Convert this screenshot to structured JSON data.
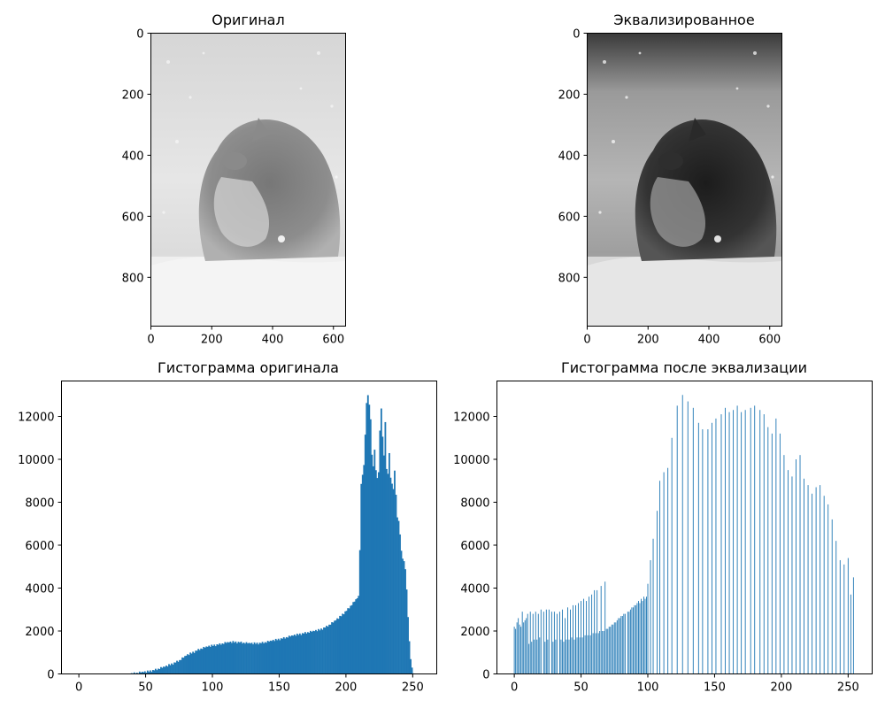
{
  "colors": {
    "bar": "#1f77b4",
    "axis": "#000000",
    "background": "#ffffff"
  },
  "images": [
    {
      "title": "Оригинал",
      "style": "original",
      "xlim": [
        0,
        640
      ],
      "ylim": [
        0,
        960
      ],
      "xticks": [
        0,
        200,
        400,
        600
      ],
      "yticks": [
        0,
        200,
        400,
        600,
        800
      ]
    },
    {
      "title": "Эквализированное",
      "style": "equalized",
      "xlim": [
        0,
        640
      ],
      "ylim": [
        0,
        960
      ],
      "xticks": [
        0,
        200,
        400,
        600
      ],
      "yticks": [
        0,
        200,
        400,
        600,
        800
      ]
    }
  ],
  "chart_data": [
    {
      "type": "bar",
      "title": "Гистограмма оригинала",
      "xlim": [
        -13,
        268
      ],
      "ylim": [
        0,
        13650
      ],
      "xticks": [
        0,
        50,
        100,
        150,
        200,
        250
      ],
      "yticks": [
        0,
        2000,
        4000,
        6000,
        8000,
        10000,
        12000
      ],
      "bins": 256,
      "anchors": [
        [
          0,
          0
        ],
        [
          37,
          0
        ],
        [
          40,
          20
        ],
        [
          45,
          60
        ],
        [
          50,
          90
        ],
        [
          55,
          160
        ],
        [
          60,
          250
        ],
        [
          65,
          350
        ],
        [
          70,
          480
        ],
        [
          75,
          630
        ],
        [
          80,
          850
        ],
        [
          85,
          1000
        ],
        [
          90,
          1150
        ],
        [
          95,
          1250
        ],
        [
          100,
          1320
        ],
        [
          105,
          1380
        ],
        [
          110,
          1450
        ],
        [
          115,
          1480
        ],
        [
          120,
          1470
        ],
        [
          125,
          1430
        ],
        [
          130,
          1410
        ],
        [
          135,
          1430
        ],
        [
          140,
          1480
        ],
        [
          145,
          1550
        ],
        [
          150,
          1620
        ],
        [
          155,
          1700
        ],
        [
          160,
          1780
        ],
        [
          165,
          1850
        ],
        [
          170,
          1920
        ],
        [
          175,
          1980
        ],
        [
          180,
          2050
        ],
        [
          185,
          2200
        ],
        [
          190,
          2400
        ],
        [
          195,
          2650
        ],
        [
          200,
          2950
        ],
        [
          205,
          3300
        ],
        [
          209,
          3600
        ],
        [
          210,
          5800
        ],
        [
          211,
          8800
        ],
        [
          212,
          9300
        ],
        [
          213,
          9700
        ],
        [
          214,
          11200
        ],
        [
          215,
          12600
        ],
        [
          216,
          13000
        ],
        [
          217,
          12500
        ],
        [
          218,
          11900
        ],
        [
          219,
          10200
        ],
        [
          220,
          9700
        ],
        [
          221,
          10400
        ],
        [
          222,
          9500
        ],
        [
          223,
          9100
        ],
        [
          224,
          9400
        ],
        [
          225,
          11300
        ],
        [
          226,
          12400
        ],
        [
          227,
          11000
        ],
        [
          228,
          10200
        ],
        [
          229,
          11700
        ],
        [
          230,
          9600
        ],
        [
          231,
          9300
        ],
        [
          232,
          10300
        ],
        [
          233,
          9100
        ],
        [
          234,
          8900
        ],
        [
          235,
          8600
        ],
        [
          236,
          9500
        ],
        [
          237,
          8300
        ],
        [
          238,
          7300
        ],
        [
          239,
          7100
        ],
        [
          240,
          6500
        ],
        [
          241,
          5700
        ],
        [
          242,
          5400
        ],
        [
          243,
          5200
        ],
        [
          244,
          4900
        ],
        [
          245,
          3900
        ],
        [
          246,
          2700
        ],
        [
          247,
          1500
        ],
        [
          248,
          700
        ],
        [
          249,
          250
        ],
        [
          250,
          60
        ],
        [
          251,
          0
        ],
        [
          255,
          0
        ]
      ],
      "wiggle": [
        0,
        40,
        -30,
        55,
        -20,
        35,
        -50,
        25,
        -10,
        45,
        -35,
        15,
        -25,
        50,
        -5,
        30
      ]
    },
    {
      "type": "bar",
      "title": "Гистограмма после эквализации",
      "xlim": [
        -13,
        268
      ],
      "ylim": [
        0,
        13650
      ],
      "xticks": [
        0,
        50,
        100,
        150,
        200,
        250
      ],
      "yticks": [
        0,
        2000,
        4000,
        6000,
        8000,
        10000,
        12000
      ],
      "bins": 256,
      "values_sparse": [
        [
          0,
          2200
        ],
        [
          1,
          2100
        ],
        [
          2,
          2400
        ],
        [
          3,
          2600
        ],
        [
          4,
          2300
        ],
        [
          5,
          2200
        ],
        [
          6,
          2900
        ],
        [
          7,
          2400
        ],
        [
          8,
          2500
        ],
        [
          9,
          2600
        ],
        [
          10,
          2800
        ],
        [
          11,
          1400
        ],
        [
          12,
          2900
        ],
        [
          13,
          1500
        ],
        [
          14,
          2800
        ],
        [
          15,
          1600
        ],
        [
          16,
          2900
        ],
        [
          17,
          1600
        ],
        [
          18,
          2800
        ],
        [
          19,
          1700
        ],
        [
          20,
          3000
        ],
        [
          22,
          2900
        ],
        [
          23,
          1500
        ],
        [
          24,
          3000
        ],
        [
          25,
          1600
        ],
        [
          26,
          3000
        ],
        [
          28,
          2900
        ],
        [
          29,
          1500
        ],
        [
          30,
          2900
        ],
        [
          31,
          1600
        ],
        [
          32,
          2800
        ],
        [
          34,
          2900
        ],
        [
          35,
          1600
        ],
        [
          36,
          3000
        ],
        [
          37,
          1500
        ],
        [
          38,
          2600
        ],
        [
          39,
          1600
        ],
        [
          40,
          3100
        ],
        [
          41,
          1600
        ],
        [
          42,
          3000
        ],
        [
          43,
          1700
        ],
        [
          44,
          3200
        ],
        [
          45,
          1600
        ],
        [
          46,
          3200
        ],
        [
          47,
          1700
        ],
        [
          48,
          3300
        ],
        [
          49,
          1700
        ],
        [
          50,
          3400
        ],
        [
          51,
          1700
        ],
        [
          52,
          3500
        ],
        [
          53,
          1800
        ],
        [
          54,
          3400
        ],
        [
          55,
          1800
        ],
        [
          56,
          3600
        ],
        [
          57,
          1800
        ],
        [
          58,
          3700
        ],
        [
          59,
          1900
        ],
        [
          60,
          3900
        ],
        [
          61,
          1900
        ],
        [
          62,
          3900
        ],
        [
          63,
          1900
        ],
        [
          64,
          2000
        ],
        [
          65,
          4100
        ],
        [
          66,
          2000
        ],
        [
          67,
          2000
        ],
        [
          68,
          4300
        ],
        [
          69,
          2100
        ],
        [
          70,
          2100
        ],
        [
          71,
          2200
        ],
        [
          72,
          2200
        ],
        [
          73,
          2300
        ],
        [
          74,
          2300
        ],
        [
          75,
          2400
        ],
        [
          76,
          2400
        ],
        [
          77,
          2500
        ],
        [
          78,
          2600
        ],
        [
          79,
          2600
        ],
        [
          80,
          2700
        ],
        [
          81,
          2700
        ],
        [
          82,
          2800
        ],
        [
          83,
          2800
        ],
        [
          85,
          2900
        ],
        [
          86,
          2900
        ],
        [
          87,
          3000
        ],
        [
          88,
          3100
        ],
        [
          89,
          3100
        ],
        [
          90,
          3200
        ],
        [
          91,
          3200
        ],
        [
          92,
          3300
        ],
        [
          93,
          3400
        ],
        [
          94,
          3300
        ],
        [
          95,
          3500
        ],
        [
          96,
          3400
        ],
        [
          97,
          3600
        ],
        [
          98,
          3500
        ],
        [
          99,
          3600
        ],
        [
          100,
          4200
        ],
        [
          102,
          5300
        ],
        [
          104,
          6300
        ],
        [
          107,
          7600
        ],
        [
          109,
          9000
        ],
        [
          112,
          9400
        ],
        [
          115,
          9600
        ],
        [
          118,
          11000
        ],
        [
          122,
          12500
        ],
        [
          126,
          13000
        ],
        [
          130,
          12700
        ],
        [
          134,
          12400
        ],
        [
          138,
          11700
        ],
        [
          141,
          11400
        ],
        [
          145,
          11400
        ],
        [
          148,
          11700
        ],
        [
          151,
          11900
        ],
        [
          155,
          12100
        ],
        [
          158,
          12400
        ],
        [
          161,
          12200
        ],
        [
          164,
          12300
        ],
        [
          167,
          12500
        ],
        [
          170,
          12200
        ],
        [
          173,
          12300
        ],
        [
          177,
          12400
        ],
        [
          180,
          12500
        ],
        [
          184,
          12300
        ],
        [
          187,
          12100
        ],
        [
          190,
          11500
        ],
        [
          193,
          11200
        ],
        [
          196,
          11900
        ],
        [
          199,
          11200
        ],
        [
          202,
          10200
        ],
        [
          205,
          9500
        ],
        [
          208,
          9200
        ],
        [
          211,
          10000
        ],
        [
          214,
          10200
        ],
        [
          217,
          9100
        ],
        [
          220,
          8800
        ],
        [
          223,
          8400
        ],
        [
          226,
          8700
        ],
        [
          229,
          8800
        ],
        [
          232,
          8300
        ],
        [
          235,
          7900
        ],
        [
          238,
          7200
        ],
        [
          241,
          6200
        ],
        [
          244,
          5300
        ],
        [
          247,
          5100
        ],
        [
          250,
          5400
        ],
        [
          252,
          3700
        ],
        [
          254,
          4500
        ]
      ]
    }
  ]
}
